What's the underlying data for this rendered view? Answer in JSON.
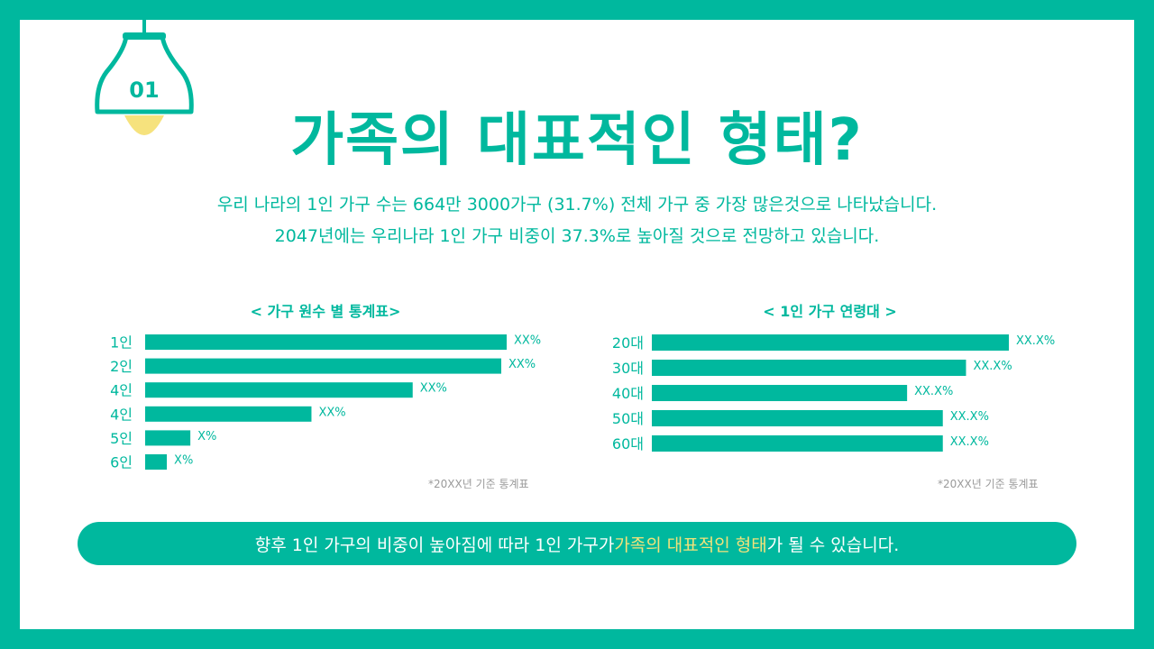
{
  "badge": {
    "number": "01"
  },
  "title": "가족의 대표적인 형태?",
  "description": [
    "우리 나라의 1인 가구 수는 664만 3000가구 (31.7%) 전체 가구 중 가장 많은것으로 나타났습니다.",
    "2047년에는 우리나라 1인 가구 비중이 37.3%로 높아질 것으로 전망하고 있습니다."
  ],
  "colors": {
    "accent": "#00B89E",
    "highlight": "#F2E27A",
    "bulb": "#F6E27D",
    "note": "#9a9a9a"
  },
  "icons": {
    "lamp": "pendant-lamp-icon"
  },
  "chart_data": [
    {
      "type": "bar",
      "orientation": "horizontal",
      "title": "< 가구 원수 별 통계표>",
      "categories": [
        "1인",
        "2인",
        "4인",
        "4인",
        "5인",
        "6인"
      ],
      "values": [
        100,
        98.5,
        74,
        46,
        12.5,
        6
      ],
      "data_labels": [
        "XX%",
        "XX%",
        "XX%",
        "XX%",
        "X%",
        "X%"
      ],
      "xlim": [
        0,
        100
      ],
      "grid": false,
      "legend": "none",
      "note": "*20XX년 기준 통계표"
    },
    {
      "type": "bar",
      "orientation": "horizontal",
      "title": "< 1인 가구 연령대 >",
      "categories": [
        "20대",
        "30대",
        "40대",
        "50대",
        "60대"
      ],
      "values": [
        100,
        88,
        71.5,
        81.5,
        81.5
      ],
      "data_labels": [
        "XX.X%",
        "XX.X%",
        "XX.X%",
        "XX.X%",
        "XX.X%"
      ],
      "xlim": [
        0,
        100
      ],
      "grid": false,
      "legend": "none",
      "note": "*20XX년 기준 통계표"
    }
  ],
  "conclusion": {
    "before": "향후 1인 가구의 비중이 높아짐에 따라 1인 가구가 ",
    "highlight": "가족의 대표적인 형태",
    "after": "가 될 수 있습니다."
  }
}
